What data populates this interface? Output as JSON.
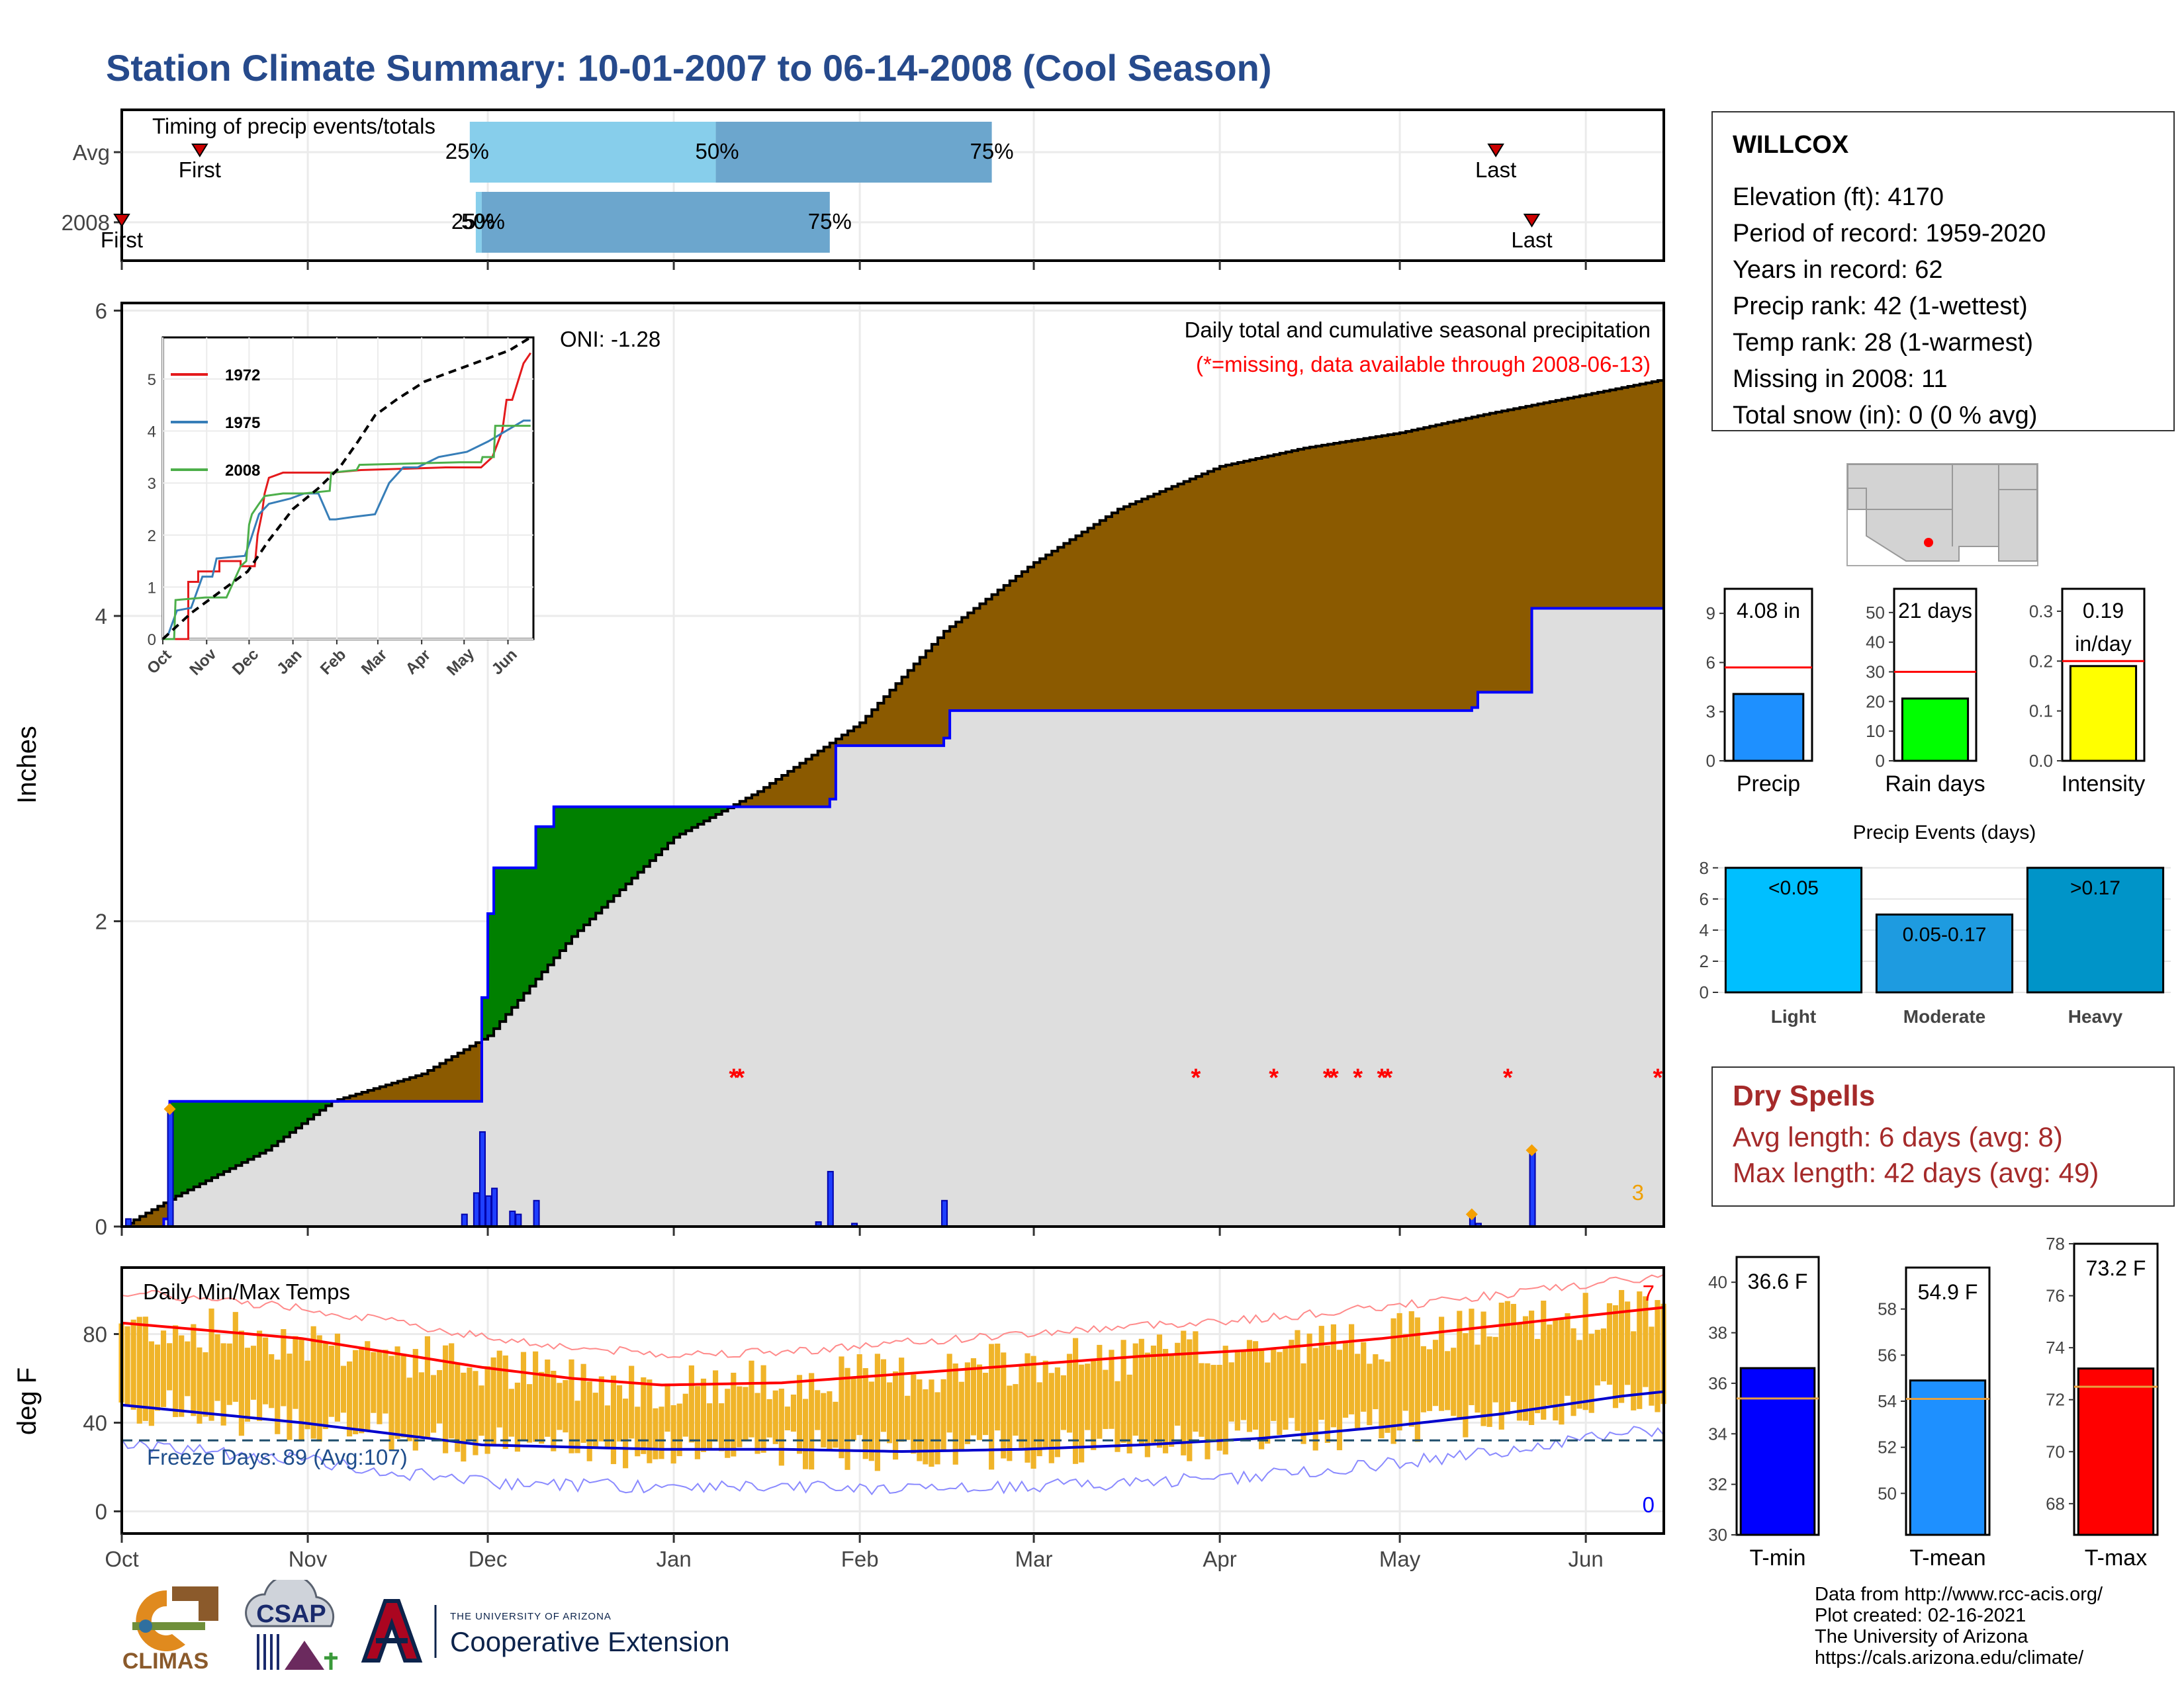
{
  "title": "Station Climate Summary: 10-01-2007 to 06-14-2008 (Cool Season)",
  "station": {
    "name": "WILLCOX",
    "lines": [
      "Elevation (ft): 4170",
      "Period of record: 1959-2020",
      "Years in record: 62",
      "Precip rank: 42 (1-wettest)",
      "Temp rank: 28 (1-warmest)",
      "Missing in 2008: 11",
      "Total snow (in): 0 (0 % avg)"
    ]
  },
  "dry_spells": {
    "heading": "Dry Spells",
    "avg_length": "Avg length: 6 days (avg: 8)",
    "max_length": "Max length: 42 days (avg: 49)"
  },
  "credits": [
    "Data from http://www.rcc-acis.org/",
    "Plot created: 02-16-2021",
    "The University of Arizona",
    "https://cals.arizona.edu/climate/"
  ],
  "logos": {
    "climas": "CLIMAS",
    "csap": "CSAP",
    "ua_small": "THE UNIVERSITY OF ARIZONA",
    "ua_big": "Cooperative Extension"
  },
  "colors": {
    "cum_avg_fill": "#8B5A00",
    "cum_surplus_fill": "#008000",
    "cum_background": "#dedede",
    "obs_line": "#0000ff",
    "temp_bar": "#f0b429",
    "tmax_line": "#ff0000",
    "tmin_line": "#0000cc",
    "missing": "#ff0000"
  },
  "chart_data": [
    {
      "id": "timing",
      "type": "bar",
      "title": "Timing of precip events/totals",
      "rows": [
        {
          "label": "Avg",
          "q25": "2007-11-28",
          "q50": "2008-01-08",
          "q75": "2008-02-23",
          "first": "2007-10-14",
          "last": "2008-05-17",
          "q25_label": "25%",
          "q50_label": "50%",
          "q75_label": "75%",
          "first_label": "First",
          "last_label": "Last"
        },
        {
          "label": "2008",
          "q25": "2007-11-29",
          "q50": "2007-11-30",
          "q75": "2008-01-27",
          "first": "2007-10-01",
          "last": "2008-05-23",
          "q25_label": "25%",
          "q50_label": "50%",
          "q75_label": "75%",
          "first_label": "First",
          "last_label": "Last"
        }
      ]
    },
    {
      "id": "precip",
      "type": "area",
      "title": "Daily total and cumulative seasonal precipitation",
      "subtitle": "(*=missing, data available through 2008-06-13)",
      "ylabel": "Inches",
      "ylim": [
        0,
        6
      ],
      "yticks": [
        0,
        2,
        4,
        6
      ],
      "oni": "ONI: -1.28",
      "count_label": "3",
      "avg_cumulative": [
        [
          "2007-10-01",
          0
        ],
        [
          "2007-10-10",
          0.2
        ],
        [
          "2007-10-25",
          0.5
        ],
        [
          "2007-11-05",
          0.82
        ],
        [
          "2007-11-20",
          1.0
        ],
        [
          "2007-12-01",
          1.25
        ],
        [
          "2007-12-15",
          1.9
        ],
        [
          "2008-01-01",
          2.55
        ],
        [
          "2008-01-15",
          2.85
        ],
        [
          "2008-02-01",
          3.3
        ],
        [
          "2008-02-15",
          3.9
        ],
        [
          "2008-03-01",
          4.35
        ],
        [
          "2008-03-15",
          4.7
        ],
        [
          "2008-04-01",
          4.98
        ],
        [
          "2008-04-15",
          5.1
        ],
        [
          "2008-05-01",
          5.2
        ],
        [
          "2008-05-15",
          5.32
        ],
        [
          "2008-06-01",
          5.45
        ],
        [
          "2008-06-14",
          5.55
        ]
      ],
      "obs_cumulative": [
        [
          "2007-10-01",
          0
        ],
        [
          "2007-10-08",
          0.05
        ],
        [
          "2007-10-09",
          0.82
        ],
        [
          "2007-11-29",
          0.82
        ],
        [
          "2007-11-30",
          1.5
        ],
        [
          "2007-12-01",
          2.05
        ],
        [
          "2007-12-02",
          2.35
        ],
        [
          "2007-12-09",
          2.62
        ],
        [
          "2007-12-12",
          2.75
        ],
        [
          "2008-01-08",
          2.75
        ],
        [
          "2008-01-27",
          2.8
        ],
        [
          "2008-01-28",
          3.15
        ],
        [
          "2008-02-15",
          3.2
        ],
        [
          "2008-02-16",
          3.38
        ],
        [
          "2008-05-13",
          3.4
        ],
        [
          "2008-05-14",
          3.5
        ],
        [
          "2008-05-22",
          3.5
        ],
        [
          "2008-05-23",
          4.05
        ],
        [
          "2008-06-14",
          4.08
        ]
      ],
      "daily": [
        [
          "2007-10-02",
          0.05
        ],
        [
          "2007-10-09",
          0.77
        ],
        [
          "2007-11-27",
          0.08
        ],
        [
          "2007-11-29",
          0.22
        ],
        [
          "2007-11-30",
          0.62
        ],
        [
          "2007-12-01",
          0.2
        ],
        [
          "2007-12-02",
          0.25
        ],
        [
          "2007-12-05",
          0.1
        ],
        [
          "2007-12-06",
          0.08
        ],
        [
          "2007-12-09",
          0.17
        ],
        [
          "2008-01-25",
          0.03
        ],
        [
          "2008-01-27",
          0.36
        ],
        [
          "2008-01-31",
          0.02
        ],
        [
          "2008-02-15",
          0.17
        ],
        [
          "2008-05-13",
          0.07
        ],
        [
          "2008-05-14",
          0.02
        ],
        [
          "2008-05-23",
          0.5
        ]
      ],
      "special_points": [
        [
          "2007-10-09",
          0.77
        ],
        [
          "2008-05-13",
          0.08
        ],
        [
          "2008-05-23",
          0.5
        ]
      ],
      "missing": [
        "2008-01-11",
        "2008-01-12",
        "2008-03-28",
        "2008-04-10",
        "2008-04-19",
        "2008-04-20",
        "2008-04-24",
        "2008-04-28",
        "2008-04-29",
        "2008-05-19",
        "2008-06-13"
      ],
      "missing_marker": "*"
    },
    {
      "id": "inset",
      "type": "line",
      "ylim": [
        0,
        5.8
      ],
      "yticks": [
        0,
        1,
        2,
        3,
        4,
        5
      ],
      "xticks": [
        "Oct",
        "Nov",
        "Dec",
        "Jan",
        "Feb",
        "Mar",
        "Apr",
        "May",
        "Jun"
      ],
      "series": [
        {
          "name": "1972",
          "color": "#e41a1c",
          "points": [
            [
              0,
              0
            ],
            [
              18,
              0
            ],
            [
              18,
              1.1
            ],
            [
              25,
              1.1
            ],
            [
              25,
              1.3
            ],
            [
              40,
              1.3
            ],
            [
              40,
              1.5
            ],
            [
              55,
              1.5
            ],
            [
              55,
              1.4
            ],
            [
              65,
              1.4
            ],
            [
              67,
              2.0
            ],
            [
              70,
              2.4
            ],
            [
              72,
              2.8
            ],
            [
              75,
              3.1
            ],
            [
              85,
              3.2
            ],
            [
              120,
              3.2
            ],
            [
              140,
              3.25
            ],
            [
              200,
              3.3
            ],
            [
              225,
              3.3
            ],
            [
              233,
              3.5
            ],
            [
              240,
              4.0
            ],
            [
              243,
              4.6
            ],
            [
              247,
              4.6
            ],
            [
              255,
              5.3
            ],
            [
              260,
              5.5
            ]
          ]
        },
        {
          "name": "1975",
          "color": "#377eb8",
          "points": [
            [
              0,
              0
            ],
            [
              4,
              0.1
            ],
            [
              10,
              0.55
            ],
            [
              20,
              0.6
            ],
            [
              28,
              1.2
            ],
            [
              35,
              1.2
            ],
            [
              38,
              1.55
            ],
            [
              58,
              1.6
            ],
            [
              62,
              1.9
            ],
            [
              68,
              2.4
            ],
            [
              75,
              2.6
            ],
            [
              90,
              2.7
            ],
            [
              100,
              2.8
            ],
            [
              110,
              2.8
            ],
            [
              118,
              2.3
            ],
            [
              122,
              2.3
            ],
            [
              135,
              2.35
            ],
            [
              150,
              2.4
            ],
            [
              160,
              3.0
            ],
            [
              170,
              3.3
            ],
            [
              180,
              3.3
            ],
            [
              195,
              3.5
            ],
            [
              215,
              3.6
            ],
            [
              230,
              3.8
            ],
            [
              255,
              4.2
            ],
            [
              260,
              4.2
            ]
          ]
        },
        {
          "name": "2008",
          "color": "#4daf4a",
          "points": [
            [
              0,
              0
            ],
            [
              8,
              0
            ],
            [
              9,
              0.75
            ],
            [
              30,
              0.8
            ],
            [
              45,
              0.8
            ],
            [
              55,
              1.4
            ],
            [
              59,
              1.5
            ],
            [
              61,
              2.2
            ],
            [
              63,
              2.4
            ],
            [
              68,
              2.6
            ],
            [
              72,
              2.75
            ],
            [
              85,
              2.8
            ],
            [
              100,
              2.8
            ],
            [
              118,
              2.85
            ],
            [
              119,
              3.2
            ],
            [
              137,
              3.25
            ],
            [
              139,
              3.35
            ],
            [
              210,
              3.4
            ],
            [
              225,
              3.4
            ],
            [
              226,
              3.5
            ],
            [
              234,
              3.5
            ],
            [
              235,
              4.1
            ],
            [
              260,
              4.1
            ]
          ]
        }
      ],
      "avg_series": {
        "name": "avg",
        "color": "#000000",
        "points": [
          [
            0,
            0
          ],
          [
            20,
            0.5
          ],
          [
            40,
            0.9
          ],
          [
            60,
            1.3
          ],
          [
            75,
            1.9
          ],
          [
            92,
            2.5
          ],
          [
            110,
            2.9
          ],
          [
            125,
            3.3
          ],
          [
            138,
            3.8
          ],
          [
            150,
            4.3
          ],
          [
            165,
            4.6
          ],
          [
            185,
            4.95
          ],
          [
            200,
            5.1
          ],
          [
            215,
            5.25
          ],
          [
            230,
            5.4
          ],
          [
            245,
            5.55
          ],
          [
            260,
            5.8
          ]
        ]
      }
    },
    {
      "id": "temps",
      "type": "bar",
      "title": "Daily Min/Max Temps",
      "ylabel": "deg F",
      "ylim": [
        -10,
        110
      ],
      "yticks": [
        0,
        40,
        80
      ],
      "x_months": [
        "Oct",
        "Nov",
        "Dec",
        "Jan",
        "Feb",
        "Mar",
        "Apr",
        "May",
        "Jun"
      ],
      "freeze_label": "Freeze Days: 89 (Avg:107)",
      "freeze_line": 32,
      "max_count_label": "7",
      "min_count_label": "0",
      "tmax_avg": [
        [
          0,
          85
        ],
        [
          30,
          78
        ],
        [
          60,
          65
        ],
        [
          75,
          60
        ],
        [
          90,
          57
        ],
        [
          110,
          58
        ],
        [
          130,
          62
        ],
        [
          150,
          66
        ],
        [
          170,
          70
        ],
        [
          190,
          73
        ],
        [
          210,
          78
        ],
        [
          230,
          84
        ],
        [
          250,
          90
        ],
        [
          257,
          92
        ]
      ],
      "tmin_avg": [
        [
          0,
          48
        ],
        [
          30,
          40
        ],
        [
          60,
          30
        ],
        [
          90,
          28
        ],
        [
          110,
          28
        ],
        [
          130,
          27
        ],
        [
          150,
          28
        ],
        [
          170,
          30
        ],
        [
          190,
          33
        ],
        [
          210,
          38
        ],
        [
          230,
          44
        ],
        [
          250,
          52
        ],
        [
          257,
          54
        ]
      ]
    },
    {
      "id": "precip_summary",
      "type": "bar",
      "panels": [
        {
          "category": "Precip",
          "value": 4.08,
          "avg": 5.7,
          "label": "4.08 in",
          "ylim": [
            0,
            10.5
          ],
          "yticks": [
            0,
            3,
            6,
            9
          ],
          "color": "#1e90ff"
        },
        {
          "category": "Rain days",
          "value": 21,
          "avg": 30,
          "label": "21 days",
          "ylim": [
            0,
            58
          ],
          "yticks": [
            0,
            10,
            20,
            30,
            40,
            50
          ],
          "color": "#00ff00"
        },
        {
          "category": "Intensity",
          "value": 0.19,
          "avg": 0.2,
          "label": "0.19 in/day",
          "label_lines": [
            "0.19",
            "in/day"
          ],
          "ylim": [
            0,
            0.345
          ],
          "yticks": [
            0.0,
            0.1,
            0.2,
            0.3
          ],
          "color": "#ffff00"
        }
      ]
    },
    {
      "id": "events",
      "type": "bar",
      "title": "Precip Events (days)",
      "categories": [
        "Light",
        "Moderate",
        "Heavy"
      ],
      "values": [
        8,
        5,
        8
      ],
      "labels": [
        "<0.05",
        "0.05-0.17",
        ">0.17"
      ],
      "colors": [
        "#00bfff",
        "#1e9be0",
        "#0094c8"
      ],
      "ylim": [
        0,
        8.5
      ],
      "yticks": [
        0,
        2,
        4,
        6,
        8
      ]
    },
    {
      "id": "temp_summary",
      "type": "bar",
      "panels": [
        {
          "category": "T-min",
          "value": 36.6,
          "avg": 35.4,
          "label": "36.6 F",
          "ylim": [
            30,
            41
          ],
          "yticks": [
            30,
            32,
            34,
            36,
            38,
            40
          ],
          "color": "#0000ff"
        },
        {
          "category": "T-mean",
          "value": 54.9,
          "avg": 54.1,
          "label": "54.9 F",
          "ylim": [
            48.2,
            59.8
          ],
          "yticks": [
            50,
            52,
            54,
            56,
            58
          ],
          "color": "#1e90ff"
        },
        {
          "category": "T-max",
          "value": 73.2,
          "avg": 72.5,
          "label": "73.2 F",
          "ylim": [
            66.8,
            78
          ],
          "yticks": [
            68,
            70,
            72,
            74,
            76,
            78
          ],
          "color": "#ff0000"
        }
      ]
    }
  ]
}
